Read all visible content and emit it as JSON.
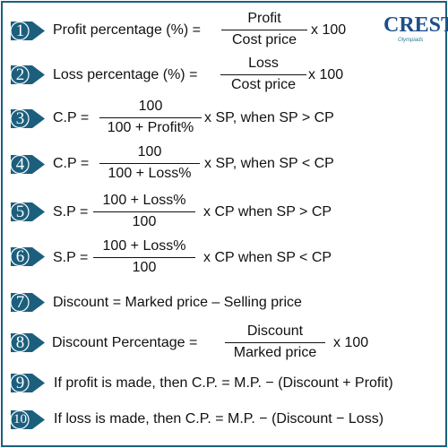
{
  "logo": {
    "text": "CREST",
    "subtitle": "Olympiads"
  },
  "formulas": [
    {
      "n": "1",
      "lhs": "Profit percentage (%) =",
      "num": "Profit",
      "den": "Cost price",
      "rhs": "x 100"
    },
    {
      "n": "2",
      "lhs": "Loss percentage (%) =",
      "num": "Loss",
      "den": "Cost price",
      "rhs": "x 100"
    },
    {
      "n": "3",
      "lhs": "C.P =",
      "num": "100",
      "den": "100 + Profit%",
      "rhs": "x SP, when SP > CP"
    },
    {
      "n": "4",
      "lhs": "C.P =",
      "num": "100",
      "den": "100 + Loss%",
      "rhs": "x SP, when SP < CP"
    },
    {
      "n": "5",
      "lhs": "S.P =",
      "num": "100 + Loss%",
      "den": "100",
      "rhs": "x CP when SP > CP"
    },
    {
      "n": "6",
      "lhs": "S.P =",
      "num": "100 + Loss%",
      "den": "100",
      "rhs": "x CP when SP < CP"
    },
    {
      "n": "7",
      "text": "Discount = Marked price – Selling price"
    },
    {
      "n": "8",
      "lhs": "Discount Percentage  =",
      "num": "Discount",
      "den": "Marked price",
      "rhs": "x 100"
    },
    {
      "n": "9",
      "text": "If profit is made, then C.P. = M.P. − (Discount + Profit)"
    },
    {
      "n": "10",
      "text": "If loss is made, then C.P. = M.P. − (Discount − Loss)"
    }
  ],
  "colors": {
    "badge": "#1c5f7d",
    "frame": "#1c5f7d",
    "logo": "#1c4f8a"
  }
}
